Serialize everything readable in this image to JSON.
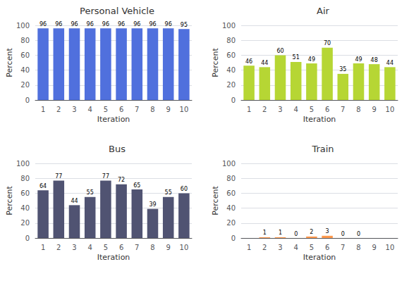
{
  "chart_data": [
    {
      "type": "bar",
      "title": "Personal Vehicle",
      "xlabel": "Iteration",
      "ylabel": "Percent",
      "categories": [
        "1",
        "2",
        "3",
        "4",
        "5",
        "6",
        "7",
        "8",
        "9",
        "10"
      ],
      "values": [
        96,
        96,
        96,
        96,
        96,
        96,
        96,
        96,
        96,
        95
      ],
      "ylim": [
        0,
        100
      ],
      "yticks": [
        0,
        20,
        40,
        60,
        80,
        100
      ],
      "grid": true,
      "data_labels": true
    },
    {
      "type": "bar",
      "title": "Air",
      "xlabel": "Iteration",
      "ylabel": "Percent",
      "categories": [
        "1",
        "2",
        "3",
        "4",
        "5",
        "6",
        "7",
        "8",
        "9",
        "10"
      ],
      "values": [
        46,
        44,
        60,
        51,
        49,
        70,
        35,
        49,
        48,
        44
      ],
      "ylim": [
        0,
        100
      ],
      "yticks": [
        0,
        20,
        40,
        60,
        80,
        100
      ],
      "grid": true,
      "data_labels": true
    },
    {
      "type": "bar",
      "title": "Bus",
      "xlabel": "Iteration",
      "ylabel": "Percent",
      "categories": [
        "1",
        "2",
        "3",
        "4",
        "5",
        "6",
        "7",
        "8",
        "9",
        "10"
      ],
      "values": [
        64,
        77,
        44,
        55,
        77,
        72,
        65,
        39,
        55,
        60
      ],
      "ylim": [
        0,
        100
      ],
      "yticks": [
        0,
        20,
        40,
        60,
        80,
        100
      ],
      "grid": true,
      "data_labels": true
    },
    {
      "type": "bar",
      "title": "Train",
      "xlabel": "Iteration",
      "ylabel": "Percent",
      "categories": [
        "1",
        "2",
        "3",
        "4",
        "5",
        "6",
        "7",
        "8",
        "9",
        "10"
      ],
      "values": [
        0,
        1,
        1,
        0,
        2,
        3,
        0,
        0,
        0,
        0
      ],
      "value_labels": [
        null,
        "1",
        "1",
        "0",
        "2",
        "3",
        "0",
        "0",
        null,
        null
      ],
      "ylim": [
        0,
        100
      ],
      "yticks": [
        0,
        20,
        40,
        60,
        80,
        100
      ],
      "grid": true,
      "data_labels": true
    }
  ]
}
